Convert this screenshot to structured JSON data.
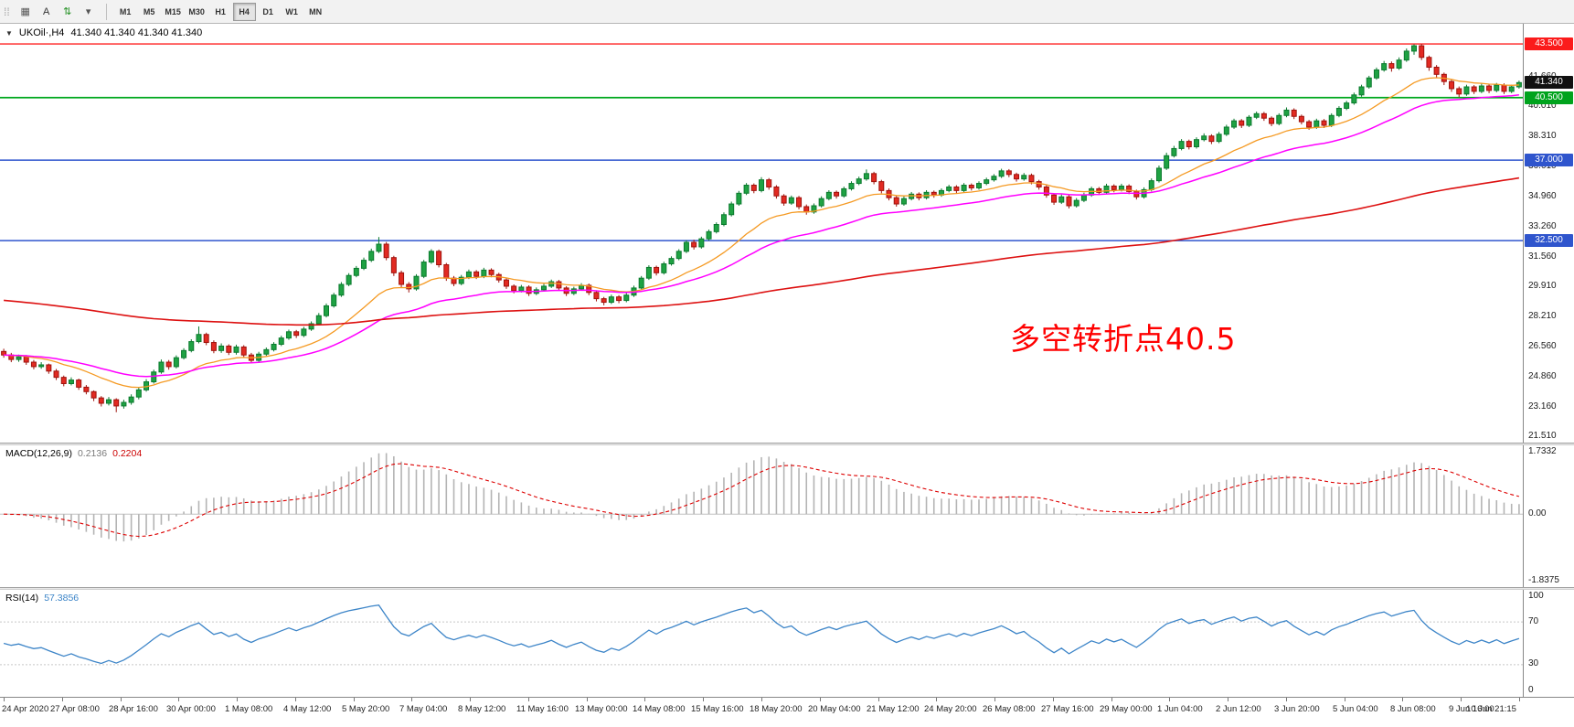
{
  "toolbar": {
    "grip_glyph": "⁞⁞",
    "icons": [
      {
        "name": "bar-chart-icon",
        "glyph": "▦",
        "color": "#555555"
      },
      {
        "name": "text-tool-icon",
        "glyph": "A",
        "color": "#333333"
      },
      {
        "name": "cycle-arrows-icon",
        "glyph": "⇅",
        "color": "#1f8f1f"
      },
      {
        "name": "dropdown-caret-icon",
        "glyph": "▾",
        "color": "#555555"
      }
    ],
    "timeframes": [
      {
        "label": "M1",
        "active": false
      },
      {
        "label": "M5",
        "active": false
      },
      {
        "label": "M15",
        "active": false
      },
      {
        "label": "M30",
        "active": false
      },
      {
        "label": "H1",
        "active": false
      },
      {
        "label": "H4",
        "active": true
      },
      {
        "label": "D1",
        "active": false
      },
      {
        "label": "W1",
        "active": false
      },
      {
        "label": "MN",
        "active": false
      }
    ]
  },
  "main_chart": {
    "dropdown_glyph": "▼",
    "symbol_title": "UKOil·,H4",
    "ohlc": "41.340 41.340 41.340 41.340",
    "annotation": {
      "text": "多空转折点40.5",
      "color": "#ff0000"
    },
    "y_ticks": [
      "43.360",
      "41.660",
      "40.010",
      "38.310",
      "36.610",
      "34.960",
      "33.260",
      "31.560",
      "29.910",
      "28.210",
      "26.560",
      "24.860",
      "23.160",
      "21.510"
    ],
    "price_tags": [
      {
        "label": "43.500",
        "price": 43.5,
        "bg": "#fb1b1b"
      },
      {
        "label": "41.340",
        "price": 41.34,
        "bg": "#111111"
      },
      {
        "label": "40.500",
        "price": 40.5,
        "bg": "#00a31d"
      },
      {
        "label": "37.000",
        "price": 37.0,
        "bg": "#2f55cd"
      },
      {
        "label": "32.500",
        "price": 32.5,
        "bg": "#2f55cd"
      }
    ],
    "hlines": [
      {
        "price": 43.5,
        "color": "#ff2222",
        "width": 1.4
      },
      {
        "price": 40.5,
        "color": "#00a81e",
        "width": 1.8
      },
      {
        "price": 37.0,
        "color": "#2f55cd",
        "width": 1.5
      },
      {
        "price": 32.5,
        "color": "#2f55cd",
        "width": 1.5
      }
    ]
  },
  "chart_data": {
    "type": "candlestick",
    "symbol": "UKOil",
    "timeframe": "H4",
    "ylim": [
      21.2,
      44.63
    ],
    "colors": {
      "up": "#1fa243",
      "up_edge": "#0b7a2e",
      "down": "#e22a22",
      "down_edge": "#9e120c",
      "macd_hist": "#b4b4b4",
      "macd_signal": "#dd0000",
      "rsi_line": "#3d85c8",
      "levels": "#c8c8c8",
      "zero_line": "#c0c0c0"
    },
    "moving_averages": [
      {
        "name": "fast",
        "period": 16,
        "seed": null,
        "color": "#f59a23",
        "width": 1.3
      },
      {
        "name": "mid",
        "period": 34,
        "seed": null,
        "color": "#ff00ff",
        "width": 1.5
      },
      {
        "name": "slow",
        "period": 160,
        "seed": 29.2,
        "color": "#dd1111",
        "width": 1.6
      }
    ],
    "candles": [
      [
        26.3,
        26.45,
        25.95,
        26.1
      ],
      [
        26.1,
        26.22,
        25.7,
        25.85
      ],
      [
        25.85,
        26.12,
        25.72,
        26.0
      ],
      [
        26.0,
        26.1,
        25.55,
        25.7
      ],
      [
        25.7,
        25.82,
        25.3,
        25.45
      ],
      [
        25.45,
        25.7,
        25.33,
        25.55
      ],
      [
        25.55,
        25.62,
        25.05,
        25.2
      ],
      [
        25.2,
        25.32,
        24.7,
        24.85
      ],
      [
        24.85,
        24.95,
        24.35,
        24.5
      ],
      [
        24.5,
        24.85,
        24.4,
        24.7
      ],
      [
        24.7,
        24.78,
        24.15,
        24.3
      ],
      [
        24.3,
        24.42,
        23.9,
        24.05
      ],
      [
        24.05,
        24.12,
        23.52,
        23.7
      ],
      [
        23.7,
        23.8,
        23.22,
        23.4
      ],
      [
        23.4,
        23.75,
        23.28,
        23.6
      ],
      [
        23.6,
        23.68,
        22.9,
        23.25
      ],
      [
        23.25,
        23.6,
        23.1,
        23.45
      ],
      [
        23.45,
        23.9,
        23.32,
        23.75
      ],
      [
        23.75,
        24.28,
        23.62,
        24.15
      ],
      [
        24.15,
        24.75,
        24.05,
        24.6
      ],
      [
        24.6,
        25.28,
        24.5,
        25.15
      ],
      [
        25.15,
        25.85,
        25.05,
        25.7
      ],
      [
        25.7,
        25.82,
        25.28,
        25.45
      ],
      [
        25.45,
        26.08,
        25.35,
        25.95
      ],
      [
        25.95,
        26.48,
        25.85,
        26.35
      ],
      [
        26.35,
        26.98,
        26.25,
        26.85
      ],
      [
        26.85,
        27.7,
        26.75,
        27.25
      ],
      [
        27.25,
        27.35,
        26.65,
        26.8
      ],
      [
        26.8,
        26.92,
        26.2,
        26.35
      ],
      [
        26.35,
        26.75,
        26.22,
        26.6
      ],
      [
        26.6,
        26.7,
        26.1,
        26.25
      ],
      [
        26.25,
        26.68,
        26.12,
        26.55
      ],
      [
        26.55,
        26.65,
        25.95,
        26.1
      ],
      [
        26.1,
        26.22,
        25.65,
        25.8
      ],
      [
        25.8,
        26.28,
        25.7,
        26.15
      ],
      [
        26.15,
        26.52,
        26.05,
        26.4
      ],
      [
        26.4,
        26.82,
        26.3,
        26.7
      ],
      [
        26.7,
        27.18,
        26.6,
        27.05
      ],
      [
        27.05,
        27.52,
        26.95,
        27.4
      ],
      [
        27.4,
        27.5,
        27.05,
        27.2
      ],
      [
        27.2,
        27.68,
        27.1,
        27.55
      ],
      [
        27.55,
        27.98,
        27.45,
        27.85
      ],
      [
        27.85,
        28.45,
        27.75,
        28.3
      ],
      [
        28.3,
        28.98,
        28.2,
        28.85
      ],
      [
        28.85,
        29.58,
        28.75,
        29.45
      ],
      [
        29.45,
        30.18,
        29.35,
        30.05
      ],
      [
        30.05,
        30.68,
        29.95,
        30.55
      ],
      [
        30.55,
        31.08,
        30.45,
        30.95
      ],
      [
        30.95,
        31.55,
        30.85,
        31.4
      ],
      [
        31.4,
        32.05,
        31.3,
        31.9
      ],
      [
        31.9,
        32.7,
        31.8,
        32.3
      ],
      [
        32.3,
        32.42,
        31.4,
        31.55
      ],
      [
        31.55,
        31.65,
        30.52,
        30.7
      ],
      [
        30.7,
        30.82,
        29.88,
        30.05
      ],
      [
        30.05,
        30.18,
        29.6,
        29.8
      ],
      [
        29.8,
        30.62,
        29.7,
        30.5
      ],
      [
        30.5,
        31.42,
        30.4,
        31.3
      ],
      [
        31.3,
        32.02,
        31.2,
        31.9
      ],
      [
        31.9,
        32.0,
        31.0,
        31.15
      ],
      [
        31.15,
        31.25,
        30.25,
        30.4
      ],
      [
        30.4,
        30.52,
        29.95,
        30.1
      ],
      [
        30.1,
        30.58,
        30.0,
        30.45
      ],
      [
        30.45,
        30.88,
        30.35,
        30.75
      ],
      [
        30.75,
        30.85,
        30.35,
        30.5
      ],
      [
        30.5,
        30.98,
        30.4,
        30.85
      ],
      [
        30.85,
        30.95,
        30.45,
        30.6
      ],
      [
        30.6,
        30.7,
        30.15,
        30.3
      ],
      [
        30.3,
        30.42,
        29.8,
        29.95
      ],
      [
        29.95,
        30.05,
        29.55,
        29.7
      ],
      [
        29.7,
        30.02,
        29.6,
        29.9
      ],
      [
        29.9,
        30.0,
        29.4,
        29.55
      ],
      [
        29.55,
        29.88,
        29.45,
        29.75
      ],
      [
        29.75,
        30.08,
        29.65,
        29.95
      ],
      [
        29.95,
        30.32,
        29.85,
        30.2
      ],
      [
        30.2,
        30.3,
        29.7,
        29.85
      ],
      [
        29.85,
        29.95,
        29.4,
        29.55
      ],
      [
        29.55,
        29.92,
        29.45,
        29.8
      ],
      [
        29.8,
        30.12,
        29.7,
        30.0
      ],
      [
        30.0,
        30.1,
        29.45,
        29.6
      ],
      [
        29.6,
        29.72,
        29.1,
        29.25
      ],
      [
        29.25,
        29.35,
        28.88,
        29.05
      ],
      [
        29.05,
        29.48,
        28.95,
        29.35
      ],
      [
        29.35,
        29.45,
        29.0,
        29.15
      ],
      [
        29.15,
        29.58,
        29.05,
        29.45
      ],
      [
        29.45,
        29.98,
        29.35,
        29.85
      ],
      [
        29.85,
        30.52,
        29.75,
        30.4
      ],
      [
        30.4,
        31.12,
        30.3,
        31.0
      ],
      [
        31.0,
        31.1,
        30.55,
        30.7
      ],
      [
        30.7,
        31.32,
        30.6,
        31.2
      ],
      [
        31.2,
        31.62,
        31.1,
        31.5
      ],
      [
        31.5,
        32.02,
        31.4,
        31.9
      ],
      [
        31.9,
        32.52,
        31.8,
        32.4
      ],
      [
        32.4,
        32.55,
        32.0,
        32.15
      ],
      [
        32.15,
        32.72,
        32.05,
        32.6
      ],
      [
        32.6,
        33.12,
        32.5,
        33.0
      ],
      [
        33.0,
        33.52,
        32.9,
        33.4
      ],
      [
        33.4,
        34.08,
        33.3,
        33.95
      ],
      [
        33.95,
        34.68,
        33.85,
        34.55
      ],
      [
        34.55,
        35.28,
        34.45,
        35.15
      ],
      [
        35.15,
        35.72,
        35.05,
        35.6
      ],
      [
        35.6,
        35.7,
        35.15,
        35.3
      ],
      [
        35.3,
        36.05,
        35.2,
        35.9
      ],
      [
        35.9,
        36.0,
        35.35,
        35.5
      ],
      [
        35.5,
        35.6,
        34.85,
        35.0
      ],
      [
        35.0,
        35.1,
        34.45,
        34.6
      ],
      [
        34.6,
        35.02,
        34.5,
        34.9
      ],
      [
        34.9,
        35.0,
        34.25,
        34.4
      ],
      [
        34.4,
        34.52,
        33.95,
        34.1
      ],
      [
        34.1,
        34.58,
        34.0,
        34.45
      ],
      [
        34.45,
        34.98,
        34.35,
        34.85
      ],
      [
        34.85,
        35.32,
        34.75,
        35.2
      ],
      [
        35.2,
        35.3,
        34.85,
        35.0
      ],
      [
        35.0,
        35.52,
        34.9,
        35.4
      ],
      [
        35.4,
        35.82,
        35.3,
        35.7
      ],
      [
        35.7,
        36.08,
        35.6,
        35.95
      ],
      [
        35.95,
        36.48,
        35.85,
        36.25
      ],
      [
        36.25,
        36.35,
        35.65,
        35.8
      ],
      [
        35.8,
        35.9,
        35.15,
        35.3
      ],
      [
        35.3,
        35.42,
        34.75,
        34.9
      ],
      [
        34.9,
        35.0,
        34.4,
        34.55
      ],
      [
        34.55,
        34.98,
        34.45,
        34.85
      ],
      [
        34.85,
        35.22,
        34.75,
        35.1
      ],
      [
        35.1,
        35.2,
        34.75,
        34.9
      ],
      [
        34.9,
        35.32,
        34.8,
        35.2
      ],
      [
        35.2,
        35.3,
        34.9,
        35.05
      ],
      [
        35.05,
        35.42,
        34.95,
        35.3
      ],
      [
        35.3,
        35.62,
        35.2,
        35.5
      ],
      [
        35.5,
        35.6,
        35.15,
        35.3
      ],
      [
        35.3,
        35.72,
        35.2,
        35.6
      ],
      [
        35.6,
        35.7,
        35.3,
        35.45
      ],
      [
        35.45,
        35.82,
        35.35,
        35.7
      ],
      [
        35.7,
        36.02,
        35.6,
        35.9
      ],
      [
        35.9,
        36.22,
        35.8,
        36.1
      ],
      [
        36.1,
        36.52,
        36.0,
        36.4
      ],
      [
        36.4,
        36.5,
        36.05,
        36.2
      ],
      [
        36.2,
        36.3,
        35.8,
        35.95
      ],
      [
        35.95,
        36.28,
        35.85,
        36.15
      ],
      [
        36.15,
        36.25,
        35.65,
        35.8
      ],
      [
        35.8,
        35.9,
        35.35,
        35.5
      ],
      [
        35.5,
        35.6,
        34.9,
        35.05
      ],
      [
        35.05,
        35.15,
        34.5,
        34.65
      ],
      [
        34.65,
        35.08,
        34.55,
        34.95
      ],
      [
        34.95,
        35.05,
        34.3,
        34.45
      ],
      [
        34.45,
        34.88,
        34.35,
        34.75
      ],
      [
        34.75,
        35.18,
        34.65,
        35.05
      ],
      [
        35.05,
        35.52,
        34.95,
        35.4
      ],
      [
        35.4,
        35.5,
        35.05,
        35.2
      ],
      [
        35.2,
        35.68,
        35.1,
        35.55
      ],
      [
        35.55,
        35.65,
        35.2,
        35.35
      ],
      [
        35.35,
        35.68,
        35.25,
        35.55
      ],
      [
        35.55,
        35.65,
        35.1,
        35.25
      ],
      [
        35.25,
        35.35,
        34.8,
        34.95
      ],
      [
        34.95,
        35.48,
        34.85,
        35.35
      ],
      [
        35.35,
        35.98,
        35.25,
        35.85
      ],
      [
        35.85,
        36.7,
        35.75,
        36.55
      ],
      [
        36.55,
        37.42,
        36.45,
        37.25
      ],
      [
        37.25,
        37.8,
        37.15,
        37.65
      ],
      [
        37.65,
        38.18,
        37.55,
        38.05
      ],
      [
        38.05,
        38.15,
        37.6,
        37.75
      ],
      [
        37.75,
        38.28,
        37.65,
        38.15
      ],
      [
        38.15,
        38.5,
        38.05,
        38.35
      ],
      [
        38.35,
        38.45,
        37.9,
        38.05
      ],
      [
        38.05,
        38.58,
        37.95,
        38.45
      ],
      [
        38.45,
        38.98,
        38.35,
        38.85
      ],
      [
        38.85,
        39.32,
        38.75,
        39.2
      ],
      [
        39.2,
        39.3,
        38.8,
        38.95
      ],
      [
        38.95,
        39.52,
        38.85,
        39.4
      ],
      [
        39.4,
        39.72,
        39.3,
        39.6
      ],
      [
        39.6,
        39.7,
        39.2,
        39.35
      ],
      [
        39.35,
        39.45,
        38.9,
        39.05
      ],
      [
        39.05,
        39.62,
        38.95,
        39.5
      ],
      [
        39.5,
        39.95,
        39.4,
        39.8
      ],
      [
        39.8,
        39.9,
        39.3,
        39.45
      ],
      [
        39.45,
        39.55,
        39.0,
        39.15
      ],
      [
        39.15,
        39.25,
        38.7,
        38.85
      ],
      [
        38.85,
        39.32,
        38.75,
        39.2
      ],
      [
        39.2,
        39.3,
        38.8,
        38.95
      ],
      [
        38.95,
        39.62,
        38.85,
        39.5
      ],
      [
        39.5,
        40.02,
        39.4,
        39.9
      ],
      [
        39.9,
        40.32,
        39.8,
        40.2
      ],
      [
        40.2,
        40.78,
        40.1,
        40.65
      ],
      [
        40.65,
        41.22,
        40.55,
        41.1
      ],
      [
        41.1,
        41.72,
        41.0,
        41.6
      ],
      [
        41.6,
        42.18,
        41.5,
        42.05
      ],
      [
        42.05,
        42.55,
        41.95,
        42.4
      ],
      [
        42.4,
        42.52,
        41.95,
        42.15
      ],
      [
        42.15,
        42.75,
        42.05,
        42.6
      ],
      [
        42.6,
        43.25,
        42.5,
        43.1
      ],
      [
        43.1,
        43.48,
        42.9,
        43.4
      ],
      [
        43.4,
        43.5,
        42.6,
        42.75
      ],
      [
        42.75,
        42.85,
        42.0,
        42.2
      ],
      [
        42.2,
        42.32,
        41.6,
        41.8
      ],
      [
        41.8,
        41.9,
        41.2,
        41.4
      ],
      [
        41.4,
        41.5,
        40.82,
        41.0
      ],
      [
        41.0,
        41.12,
        40.52,
        40.7
      ],
      [
        40.7,
        41.22,
        40.6,
        41.1
      ],
      [
        41.1,
        41.2,
        40.7,
        40.85
      ],
      [
        40.85,
        41.28,
        40.75,
        41.15
      ],
      [
        41.15,
        41.25,
        40.75,
        40.9
      ],
      [
        40.9,
        41.32,
        40.8,
        41.2
      ],
      [
        41.2,
        41.3,
        40.7,
        40.85
      ],
      [
        40.85,
        41.22,
        40.75,
        41.1
      ],
      [
        41.1,
        41.45,
        41.0,
        41.34
      ]
    ],
    "macd": {
      "label": "MACD(12,26,9)",
      "main_value": "0.2136",
      "signal_value": "0.2204",
      "range": [
        -1.8375,
        1.7332
      ],
      "ticks": [
        "1.7332",
        "0.00",
        "-1.8375"
      ]
    },
    "rsi": {
      "label": "RSI(14)",
      "value": "57.3856",
      "range": [
        0,
        100
      ],
      "levels": [
        70,
        30
      ],
      "ticks": [
        "100",
        "70",
        "30",
        "0"
      ]
    }
  },
  "time_axis": {
    "labels": [
      "24 Apr 2020",
      "27 Apr 08:00",
      "28 Apr 16:00",
      "30 Apr 00:00",
      "1 May 08:00",
      "4 May 12:00",
      "5 May 20:00",
      "7 May 04:00",
      "8 May 12:00",
      "11 May 16:00",
      "13 May 00:00",
      "14 May 08:00",
      "15 May 16:00",
      "18 May 20:00",
      "20 May 04:00",
      "21 May 12:00",
      "24 May 20:00",
      "26 May 08:00",
      "27 May 16:00",
      "29 May 00:00",
      "1 Jun 04:00",
      "2 Jun 12:00",
      "3 Jun 20:00",
      "5 Jun 04:00",
      "8 Jun 08:00",
      "9 Jun 16:00",
      "10 Jun 21:15"
    ]
  }
}
